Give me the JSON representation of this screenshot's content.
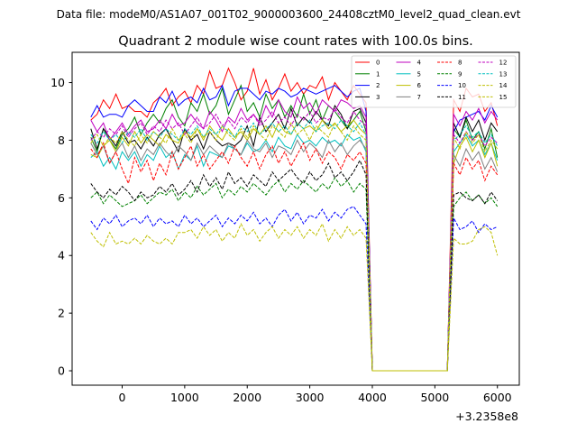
{
  "figure": {
    "suptitle": "Data file: modeM0/AS1A07_001T02_9000003600_24408cztM0_level2_quad_clean.evt"
  },
  "chart_data": {
    "type": "line",
    "title": "Quadrant 2 module wise count rates with 100.0s bins.",
    "xlabel": "",
    "ylabel": "",
    "x_offset_label": "+3.2358e8",
    "xlim": [
      -800,
      6350
    ],
    "ylim": [
      -0.5,
      11.05
    ],
    "x_ticks": [
      0,
      1000,
      2000,
      3000,
      4000,
      5000,
      6000
    ],
    "y_ticks": [
      0,
      2,
      4,
      6,
      8,
      10
    ],
    "x": [
      -500,
      -400,
      -300,
      -200,
      -100,
      0,
      100,
      200,
      300,
      400,
      500,
      600,
      700,
      800,
      900,
      1000,
      1100,
      1200,
      1300,
      1400,
      1500,
      1600,
      1700,
      1800,
      1900,
      2000,
      2100,
      2200,
      2300,
      2400,
      2500,
      2600,
      2700,
      2800,
      2900,
      3000,
      3100,
      3200,
      3300,
      3400,
      3500,
      3600,
      3700,
      3800,
      3900,
      4000,
      4100,
      4200,
      4300,
      4400,
      4500,
      4600,
      4700,
      4800,
      4900,
      5000,
      5100,
      5200,
      5300,
      5400,
      5500,
      5600,
      5700,
      5800,
      5900,
      6000
    ],
    "legend_position": "top-right",
    "series": [
      {
        "name": "0",
        "color": "#ff0000",
        "dash": "solid",
        "values": [
          8.7,
          8.9,
          9.4,
          9.1,
          9.6,
          9.1,
          9.2,
          9.0,
          9.0,
          8.8,
          9.3,
          9.5,
          9.8,
          9.2,
          9.5,
          9.7,
          9.3,
          9.9,
          9.6,
          10.4,
          9.8,
          9.9,
          10.5,
          10.0,
          9.4,
          9.7,
          10.5,
          9.6,
          10.1,
          9.4,
          9.8,
          10.3,
          9.7,
          10.0,
          9.6,
          9.9,
          9.8,
          10.2,
          9.4,
          10.0,
          9.7,
          9.4,
          9.9,
          9.6,
          9.3,
          0.0,
          0.0,
          0.0,
          0.0,
          0.0,
          0.0,
          0.0,
          0.0,
          0.0,
          0.0,
          0.0,
          0.0,
          0.0,
          9.4,
          9.0,
          9.8,
          9.5,
          9.6,
          9.0,
          9.3,
          8.5
        ]
      },
      {
        "name": "1",
        "color": "#008000",
        "dash": "solid",
        "values": [
          8.1,
          7.6,
          8.4,
          8.0,
          7.7,
          8.2,
          8.4,
          8.8,
          8.2,
          8.6,
          8.9,
          8.6,
          9.1,
          9.4,
          8.8,
          8.5,
          9.3,
          9.0,
          9.6,
          8.9,
          9.2,
          9.8,
          8.9,
          9.4,
          9.9,
          9.0,
          9.3,
          8.8,
          9.6,
          9.1,
          9.4,
          8.8,
          9.2,
          8.8,
          9.6,
          8.9,
          9.4,
          8.7,
          9.2,
          9.0,
          8.7,
          8.4,
          8.7,
          9.0,
          8.3,
          0.0,
          0.0,
          0.0,
          0.0,
          0.0,
          0.0,
          0.0,
          0.0,
          0.0,
          0.0,
          0.0,
          0.0,
          0.0,
          8.4,
          8.1,
          8.7,
          8.0,
          8.3,
          7.7,
          8.4,
          7.4
        ]
      },
      {
        "name": "2",
        "color": "#0000ff",
        "dash": "solid",
        "values": [
          8.8,
          9.2,
          8.8,
          8.9,
          8.9,
          8.8,
          9.2,
          9.4,
          9.2,
          9.0,
          9.0,
          9.5,
          9.3,
          9.7,
          9.2,
          9.4,
          9.5,
          9.3,
          9.8,
          9.4,
          9.5,
          9.9,
          9.2,
          9.7,
          9.8,
          9.8,
          9.6,
          9.4,
          9.7,
          9.6,
          9.8,
          9.7,
          9.5,
          9.6,
          9.8,
          9.7,
          9.6,
          9.7,
          9.8,
          9.9,
          9.7,
          9.5,
          9.7,
          9.8,
          9.0,
          0.0,
          0.0,
          0.0,
          0.0,
          0.0,
          0.0,
          0.0,
          0.0,
          0.0,
          0.0,
          0.0,
          0.0,
          0.0,
          8.3,
          8.7,
          8.8,
          8.9,
          9.0,
          8.7,
          9.2,
          8.8
        ]
      },
      {
        "name": "3",
        "color": "#000000",
        "dash": "solid",
        "values": [
          8.4,
          7.7,
          8.4,
          8.1,
          7.8,
          8.3,
          7.9,
          8.0,
          7.7,
          8.1,
          7.8,
          8.2,
          8.4,
          8.0,
          7.6,
          8.4,
          8.0,
          8.2,
          7.7,
          8.3,
          8.0,
          7.8,
          7.9,
          7.8,
          8.0,
          8.5,
          7.8,
          8.8,
          8.3,
          8.6,
          8.9,
          8.4,
          9.1,
          8.5,
          8.8,
          8.6,
          9.0,
          8.7,
          8.5,
          9.2,
          8.9,
          8.4,
          9.0,
          9.1,
          8.6,
          0.0,
          0.0,
          0.0,
          0.0,
          0.0,
          0.0,
          0.0,
          0.0,
          0.0,
          0.0,
          0.0,
          0.0,
          0.0,
          8.6,
          8.1,
          8.8,
          8.3,
          8.7,
          8.0,
          8.6,
          8.3
        ]
      },
      {
        "name": "4",
        "color": "#bf00bf",
        "dash": "solid",
        "values": [
          8.7,
          8.3,
          8.6,
          8.0,
          8.3,
          8.6,
          8.2,
          8.5,
          8.7,
          8.3,
          8.4,
          8.7,
          8.4,
          8.9,
          8.5,
          8.6,
          8.9,
          8.6,
          8.4,
          9.0,
          8.7,
          8.3,
          8.8,
          8.6,
          9.1,
          8.7,
          8.9,
          8.6,
          9.2,
          8.8,
          9.4,
          9.0,
          8.8,
          9.5,
          9.1,
          9.3,
          8.9,
          9.4,
          9.2,
          9.0,
          9.4,
          9.3,
          9.1,
          9.2,
          8.8,
          0.0,
          0.0,
          0.0,
          0.0,
          0.0,
          0.0,
          0.0,
          0.0,
          0.0,
          0.0,
          0.0,
          0.0,
          0.0,
          8.9,
          8.5,
          9.0,
          8.7,
          9.1,
          8.6,
          9.0,
          8.7
        ]
      },
      {
        "name": "5",
        "color": "#00bfbf",
        "dash": "solid",
        "values": [
          7.4,
          7.6,
          7.1,
          7.4,
          7.0,
          7.6,
          7.3,
          7.6,
          7.1,
          7.5,
          7.3,
          7.8,
          7.4,
          7.6,
          7.0,
          7.5,
          7.3,
          7.8,
          7.1,
          7.6,
          7.5,
          7.4,
          7.8,
          7.7,
          7.5,
          7.9,
          7.6,
          7.7,
          8.0,
          7.6,
          8.1,
          7.8,
          7.7,
          8.2,
          7.9,
          8.0,
          7.8,
          8.1,
          7.9,
          8.0,
          7.8,
          8.2,
          8.0,
          8.1,
          7.6,
          0.0,
          0.0,
          0.0,
          0.0,
          0.0,
          0.0,
          0.0,
          0.0,
          0.0,
          0.0,
          0.0,
          0.0,
          0.0,
          7.6,
          7.9,
          8.2,
          7.8,
          8.0,
          7.5,
          7.9,
          7.3
        ]
      },
      {
        "name": "6",
        "color": "#bfbf00",
        "dash": "solid",
        "values": [
          7.5,
          7.4,
          7.8,
          8.0,
          7.6,
          8.1,
          7.8,
          8.3,
          7.9,
          8.2,
          8.0,
          7.8,
          8.2,
          8.0,
          7.9,
          8.3,
          8.1,
          8.4,
          8.0,
          8.5,
          8.2,
          8.0,
          8.4,
          8.1,
          8.3,
          8.0,
          8.4,
          8.2,
          8.5,
          8.1,
          8.6,
          8.3,
          8.2,
          8.6,
          8.4,
          8.5,
          8.3,
          8.7,
          8.4,
          8.6,
          8.3,
          8.5,
          8.7,
          8.4,
          8.2,
          0.0,
          0.0,
          0.0,
          0.0,
          0.0,
          0.0,
          0.0,
          0.0,
          0.0,
          0.0,
          0.0,
          0.0,
          0.0,
          7.2,
          7.8,
          8.1,
          7.6,
          8.0,
          7.4,
          7.9,
          7.1
        ]
      },
      {
        "name": "7",
        "color": "#808080",
        "dash": "solid",
        "values": [
          7.9,
          7.5,
          7.8,
          7.2,
          7.6,
          7.9,
          7.4,
          7.8,
          7.3,
          7.7,
          7.5,
          7.9,
          7.6,
          7.4,
          7.8,
          7.6,
          7.3,
          7.9,
          7.5,
          7.8,
          7.6,
          7.4,
          7.9,
          7.7,
          7.5,
          8.0,
          7.7,
          7.6,
          7.9,
          7.4,
          7.8,
          7.7,
          7.5,
          8.0,
          7.6,
          7.9,
          7.7,
          7.4,
          8.0,
          7.6,
          7.9,
          7.5,
          7.8,
          8.0,
          7.7,
          0.0,
          0.0,
          0.0,
          0.0,
          0.0,
          0.0,
          0.0,
          0.0,
          0.0,
          0.0,
          0.0,
          0.0,
          0.0,
          7.5,
          7.1,
          7.7,
          7.3,
          7.6,
          7.0,
          7.4,
          6.9
        ]
      },
      {
        "name": "8",
        "color": "#ff0000",
        "dash": "dashed",
        "values": [
          7.7,
          7.4,
          7.9,
          7.2,
          7.6,
          7.0,
          6.5,
          7.4,
          6.9,
          7.3,
          6.6,
          7.2,
          6.8,
          7.6,
          7.0,
          7.4,
          7.8,
          7.1,
          7.5,
          7.0,
          7.3,
          7.6,
          7.2,
          7.8,
          7.4,
          7.1,
          7.6,
          7.0,
          7.5,
          7.8,
          7.2,
          7.6,
          7.1,
          7.5,
          7.9,
          7.3,
          7.7,
          7.2,
          7.6,
          7.4,
          7.0,
          7.5,
          7.3,
          7.6,
          7.2,
          0.0,
          0.0,
          0.0,
          0.0,
          0.0,
          0.0,
          0.0,
          0.0,
          0.0,
          0.0,
          0.0,
          0.0,
          0.0,
          7.2,
          6.8,
          7.4,
          7.0,
          7.3,
          6.6,
          7.1,
          6.8
        ]
      },
      {
        "name": "9",
        "color": "#008000",
        "dash": "dashed",
        "values": [
          6.0,
          6.2,
          5.8,
          6.1,
          5.9,
          5.7,
          5.8,
          5.9,
          6.1,
          5.8,
          6.0,
          6.2,
          6.1,
          6.3,
          5.9,
          6.2,
          6.0,
          6.4,
          6.1,
          6.3,
          6.5,
          6.0,
          6.3,
          6.1,
          6.4,
          6.2,
          6.5,
          6.3,
          6.1,
          6.4,
          6.6,
          6.2,
          6.5,
          6.3,
          6.6,
          6.4,
          6.2,
          6.5,
          6.3,
          6.7,
          6.4,
          6.6,
          6.2,
          6.5,
          6.3,
          0.0,
          0.0,
          0.0,
          0.0,
          0.0,
          0.0,
          0.0,
          0.0,
          0.0,
          0.0,
          0.0,
          0.0,
          0.0,
          5.7,
          6.0,
          6.2,
          5.9,
          6.1,
          5.8,
          6.0,
          5.7
        ]
      },
      {
        "name": "10",
        "color": "#0000ff",
        "dash": "dashed",
        "values": [
          5.2,
          4.9,
          5.3,
          5.1,
          5.4,
          5.0,
          5.2,
          5.3,
          5.1,
          5.4,
          5.0,
          5.3,
          5.1,
          5.2,
          5.0,
          5.4,
          5.1,
          5.3,
          5.0,
          5.2,
          5.4,
          5.0,
          5.3,
          5.1,
          5.4,
          5.2,
          5.5,
          5.1,
          5.3,
          5.0,
          5.4,
          5.6,
          5.2,
          5.5,
          5.1,
          5.4,
          5.3,
          5.6,
          5.2,
          5.5,
          5.3,
          5.6,
          5.7,
          5.4,
          5.1,
          0.0,
          0.0,
          0.0,
          0.0,
          0.0,
          0.0,
          0.0,
          0.0,
          0.0,
          0.0,
          0.0,
          0.0,
          0.0,
          5.3,
          4.9,
          5.0,
          5.2,
          4.8,
          5.1,
          4.9,
          5.0
        ]
      },
      {
        "name": "11",
        "color": "#000000",
        "dash": "dashed",
        "values": [
          6.5,
          6.2,
          6.0,
          6.3,
          6.1,
          6.4,
          6.2,
          5.9,
          6.2,
          6.0,
          6.1,
          6.4,
          6.2,
          6.5,
          6.1,
          6.3,
          6.6,
          6.2,
          6.8,
          6.4,
          6.7,
          6.3,
          6.9,
          6.5,
          6.7,
          6.4,
          6.8,
          6.6,
          6.4,
          6.9,
          6.6,
          6.8,
          7.0,
          6.7,
          6.5,
          6.9,
          6.6,
          6.8,
          7.2,
          6.7,
          6.9,
          6.6,
          6.9,
          7.3,
          6.8,
          0.0,
          0.0,
          0.0,
          0.0,
          0.0,
          0.0,
          0.0,
          0.0,
          0.0,
          0.0,
          0.0,
          0.0,
          0.0,
          6.1,
          6.2,
          6.0,
          5.9,
          6.1,
          5.8,
          6.2,
          5.9
        ]
      },
      {
        "name": "12",
        "color": "#bf00bf",
        "dash": "dashed",
        "values": [
          8.0,
          8.3,
          8.1,
          8.4,
          8.2,
          8.5,
          8.1,
          8.4,
          8.6,
          8.2,
          8.5,
          8.3,
          8.7,
          8.4,
          8.6,
          8.2,
          8.5,
          8.8,
          8.4,
          8.6,
          8.9,
          8.5,
          8.7,
          8.4,
          8.8,
          8.6,
          8.9,
          8.5,
          8.7,
          9.0,
          8.6,
          8.8,
          8.5,
          8.9,
          8.7,
          9.0,
          8.6,
          8.8,
          8.7,
          9.1,
          8.8,
          8.6,
          9.0,
          8.7,
          8.5,
          0.0,
          0.0,
          0.0,
          0.0,
          0.0,
          0.0,
          0.0,
          0.0,
          0.0,
          0.0,
          0.0,
          0.0,
          0.0,
          8.2,
          7.9,
          8.3,
          8.0,
          8.2,
          7.8,
          8.1,
          7.9
        ]
      },
      {
        "name": "13",
        "color": "#00bfbf",
        "dash": "dashed",
        "values": [
          8.2,
          7.9,
          8.3,
          8.0,
          8.2,
          7.9,
          8.3,
          8.1,
          8.4,
          8.0,
          8.3,
          8.1,
          8.4,
          8.2,
          8.0,
          8.4,
          8.2,
          8.5,
          8.1,
          8.4,
          8.2,
          8.5,
          8.3,
          8.1,
          8.5,
          8.3,
          8.6,
          8.2,
          8.4,
          8.6,
          8.3,
          8.5,
          8.2,
          8.6,
          8.4,
          8.7,
          8.3,
          8.5,
          8.6,
          8.4,
          8.7,
          8.5,
          8.3,
          8.6,
          8.2,
          0.0,
          0.0,
          0.0,
          0.0,
          0.0,
          0.0,
          0.0,
          0.0,
          0.0,
          0.0,
          0.0,
          0.0,
          0.0,
          8.0,
          8.2,
          8.5,
          8.1,
          8.3,
          7.9,
          8.2,
          7.8
        ]
      },
      {
        "name": "14",
        "color": "#bfbf00",
        "dash": "dashed",
        "values": [
          4.8,
          4.5,
          4.3,
          4.8,
          4.4,
          4.5,
          4.4,
          4.6,
          4.4,
          4.7,
          4.5,
          4.4,
          4.6,
          4.4,
          4.8,
          4.8,
          4.9,
          4.6,
          5.0,
          4.7,
          4.9,
          4.5,
          4.8,
          4.6,
          5.1,
          4.7,
          4.9,
          4.5,
          4.8,
          5.0,
          4.6,
          4.9,
          4.7,
          5.0,
          4.6,
          4.9,
          4.7,
          5.1,
          4.5,
          4.9,
          4.6,
          5.0,
          4.7,
          4.9,
          4.6,
          0.0,
          0.0,
          0.0,
          0.0,
          0.0,
          0.0,
          0.0,
          0.0,
          0.0,
          0.0,
          0.0,
          0.0,
          0.0,
          4.6,
          4.4,
          4.4,
          4.5,
          4.9,
          5.0,
          4.8,
          4.0
        ]
      },
      {
        "name": "15",
        "color": "#bfbf00",
        "dash": "dashed",
        "values": [
          7.9,
          8.2,
          7.8,
          8.1,
          7.9,
          8.3,
          8.0,
          7.8,
          8.2,
          7.9,
          8.3,
          8.1,
          7.9,
          8.4,
          8.0,
          8.2,
          7.9,
          8.4,
          8.1,
          8.3,
          8.0,
          8.5,
          8.2,
          8.0,
          8.4,
          8.1,
          8.5,
          8.2,
          8.0,
          8.5,
          8.3,
          8.1,
          8.6,
          8.2,
          8.4,
          8.0,
          8.5,
          8.3,
          8.1,
          8.6,
          8.3,
          8.0,
          8.5,
          8.2,
          8.0,
          0.0,
          0.0,
          0.0,
          0.0,
          0.0,
          0.0,
          0.0,
          0.0,
          0.0,
          0.0,
          0.0,
          0.0,
          0.0,
          8.1,
          7.7,
          8.3,
          7.9,
          8.2,
          7.6,
          8.0,
          7.7
        ]
      }
    ]
  }
}
